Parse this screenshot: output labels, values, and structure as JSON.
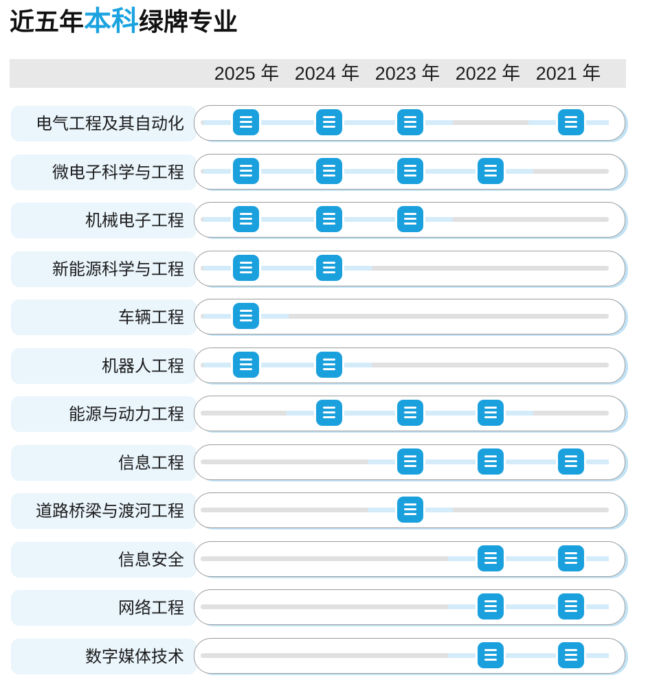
{
  "header": {
    "title_pre": "近五年",
    "title_highlight": "本科",
    "title_post": "绿牌专业"
  },
  "years": [
    "2025 年",
    "2024 年",
    "2023 年",
    "2022 年",
    "2021 年"
  ],
  "icon_name": "list-icon",
  "colors": {
    "accent": "#1ba3e0",
    "icon": "#1aa0dd",
    "active_track": "#d4ecfa",
    "inactive_track": "#e0e0e0"
  },
  "chart_data": {
    "type": "table",
    "columns": [
      "2025 年",
      "2024 年",
      "2023 年",
      "2022 年",
      "2021 年"
    ],
    "rows": [
      {
        "label": "电气工程及其自动化",
        "marks": [
          true,
          true,
          true,
          false,
          true
        ]
      },
      {
        "label": "微电子科学与工程",
        "marks": [
          true,
          true,
          true,
          true,
          false
        ]
      },
      {
        "label": "机械电子工程",
        "marks": [
          true,
          true,
          true,
          false,
          false
        ]
      },
      {
        "label": "新能源科学与工程",
        "marks": [
          true,
          true,
          false,
          false,
          false
        ]
      },
      {
        "label": "车辆工程",
        "marks": [
          true,
          false,
          false,
          false,
          false
        ]
      },
      {
        "label": "机器人工程",
        "marks": [
          true,
          true,
          false,
          false,
          false
        ]
      },
      {
        "label": "能源与动力工程",
        "marks": [
          false,
          true,
          true,
          true,
          false
        ]
      },
      {
        "label": "信息工程",
        "marks": [
          false,
          false,
          true,
          true,
          true
        ]
      },
      {
        "label": "道路桥梁与渡河工程",
        "marks": [
          false,
          false,
          true,
          false,
          false
        ]
      },
      {
        "label": "信息安全",
        "marks": [
          false,
          false,
          false,
          true,
          true
        ]
      },
      {
        "label": "网络工程",
        "marks": [
          false,
          false,
          false,
          true,
          true
        ]
      },
      {
        "label": "数字媒体技术",
        "marks": [
          false,
          false,
          false,
          true,
          true
        ]
      }
    ]
  }
}
